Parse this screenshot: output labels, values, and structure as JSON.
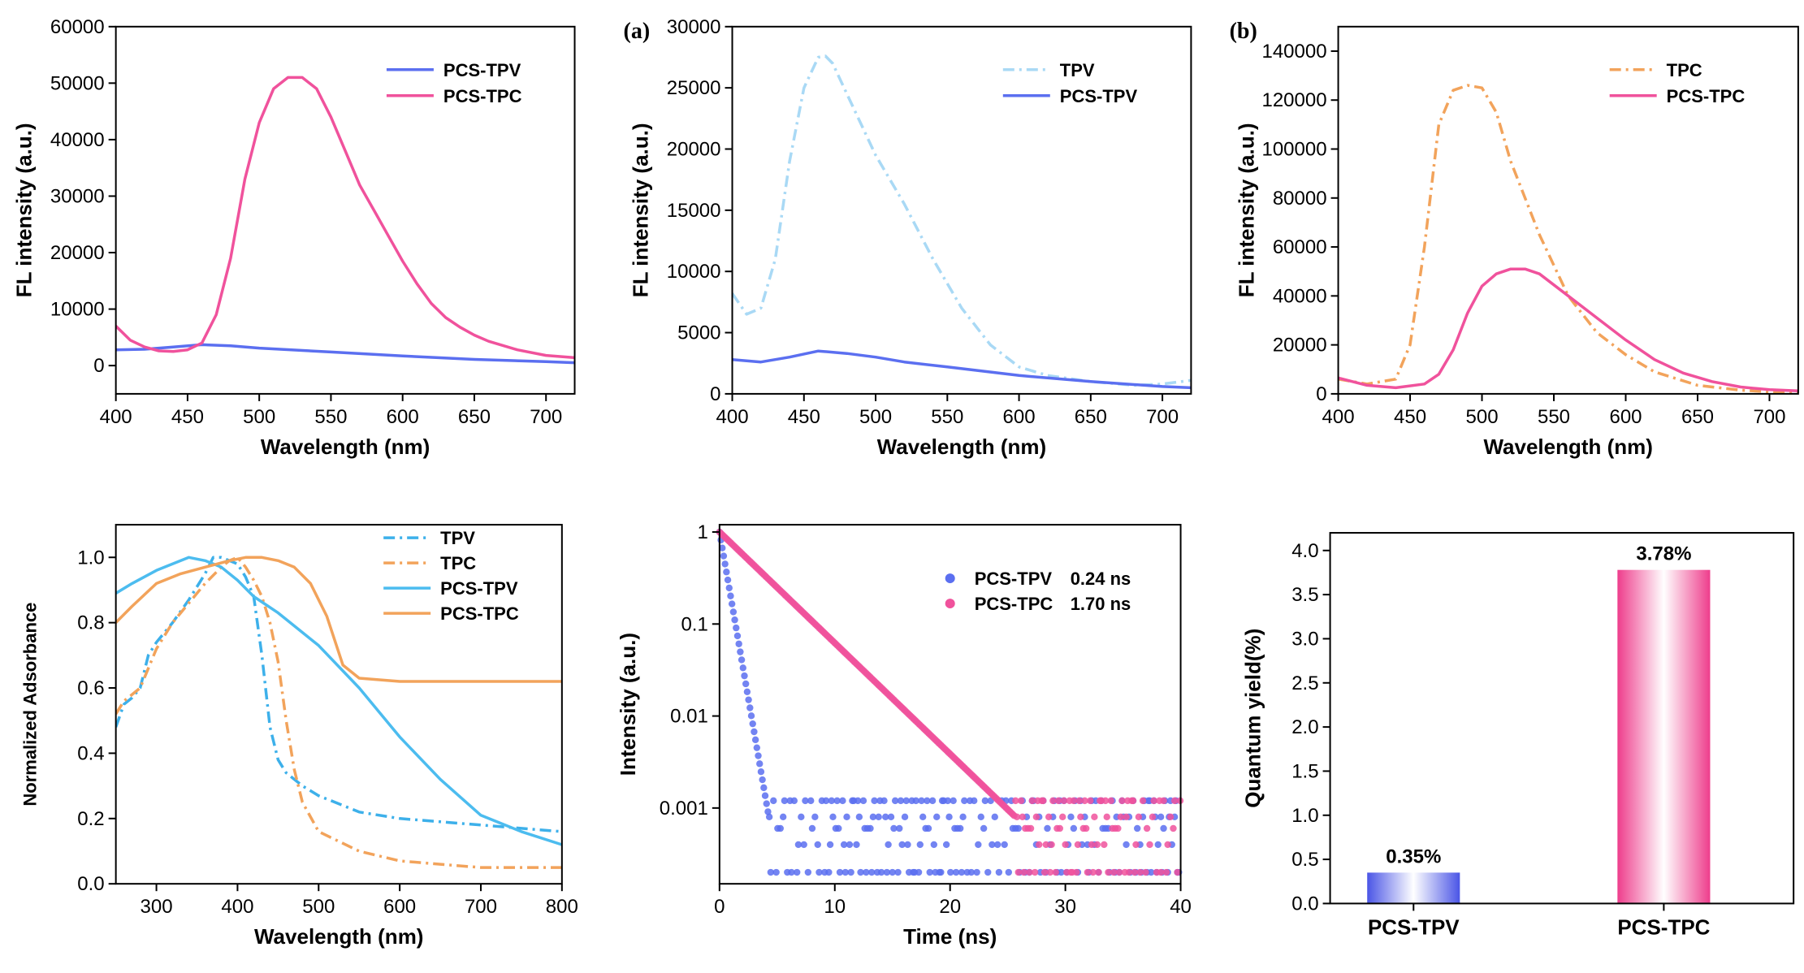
{
  "chart_data": [
    {
      "id": "p1",
      "type": "line",
      "tag": "",
      "xlabel": "Wavelength (nm)",
      "ylabel": "FL intensity (a.u.)",
      "xlim": [
        400,
        720
      ],
      "ylim": [
        -5000,
        60000
      ],
      "xticks": [
        "400",
        "450",
        "500",
        "550",
        "600",
        "650",
        "700"
      ],
      "yticks": [
        "0",
        "10000",
        "20000",
        "30000",
        "40000",
        "50000",
        "60000"
      ],
      "legend_position": "top-right",
      "series": [
        {
          "name": "PCS-TPV",
          "color": "#5b6ff0",
          "dash": "solid",
          "x": [
            400,
            420,
            440,
            460,
            480,
            500,
            550,
            600,
            650,
            700,
            720
          ],
          "y": [
            2800,
            2900,
            3300,
            3700,
            3500,
            3100,
            2400,
            1700,
            1100,
            700,
            500
          ]
        },
        {
          "name": "PCS-TPC",
          "color": "#f0529c",
          "dash": "solid",
          "x": [
            400,
            410,
            420,
            430,
            440,
            450,
            460,
            470,
            480,
            490,
            500,
            510,
            520,
            530,
            540,
            550,
            560,
            570,
            580,
            590,
            600,
            610,
            620,
            630,
            640,
            650,
            660,
            680,
            700,
            720
          ],
          "y": [
            7000,
            4500,
            3300,
            2600,
            2500,
            2800,
            4000,
            9000,
            19000,
            33000,
            43000,
            49000,
            51000,
            51000,
            49000,
            44000,
            38000,
            32000,
            27500,
            23000,
            18500,
            14500,
            11000,
            8500,
            6800,
            5400,
            4300,
            2800,
            1800,
            1400
          ]
        }
      ]
    },
    {
      "id": "p2",
      "type": "line",
      "tag": "(a)",
      "xlabel": "Wavelength (nm)",
      "ylabel": "FL intensity (a.u.)",
      "xlim": [
        400,
        720
      ],
      "ylim": [
        0,
        30000
      ],
      "xticks": [
        "400",
        "450",
        "500",
        "550",
        "600",
        "650",
        "700"
      ],
      "yticks": [
        "0",
        "5000",
        "10000",
        "15000",
        "20000",
        "25000",
        "30000"
      ],
      "legend_position": "top-right",
      "series": [
        {
          "name": "TPV",
          "color": "#a9d9f5",
          "dash": "dashdot",
          "x": [
            400,
            410,
            420,
            430,
            440,
            450,
            460,
            465,
            470,
            480,
            490,
            500,
            520,
            540,
            560,
            580,
            600,
            620,
            650,
            680,
            700,
            720
          ],
          "y": [
            8200,
            6500,
            7000,
            11000,
            19000,
            25000,
            27500,
            27600,
            27000,
            24500,
            22000,
            19500,
            15500,
            11000,
            7000,
            4000,
            2200,
            1500,
            1000,
            700,
            800,
            1100
          ]
        },
        {
          "name": "PCS-TPV",
          "color": "#5b6ff0",
          "dash": "solid",
          "x": [
            400,
            420,
            440,
            460,
            480,
            500,
            520,
            550,
            600,
            650,
            700,
            720
          ],
          "y": [
            2800,
            2600,
            3000,
            3500,
            3300,
            3000,
            2600,
            2200,
            1500,
            1000,
            600,
            500
          ]
        }
      ]
    },
    {
      "id": "p3",
      "type": "line",
      "tag": "(b)",
      "xlabel": "Wavelength (nm)",
      "ylabel": "FL intensity (a.u.)",
      "xlim": [
        400,
        720
      ],
      "ylim": [
        0,
        150000
      ],
      "xticks": [
        "400",
        "450",
        "500",
        "550",
        "600",
        "650",
        "700"
      ],
      "yticks": [
        "0",
        "20000",
        "40000",
        "60000",
        "80000",
        "100000",
        "120000",
        "140000"
      ],
      "legend_position": "top-right",
      "series": [
        {
          "name": "TPC",
          "color": "#f2a35b",
          "dash": "dashdot",
          "x": [
            400,
            420,
            440,
            450,
            460,
            470,
            480,
            490,
            500,
            510,
            520,
            540,
            560,
            580,
            600,
            620,
            650,
            680,
            700,
            720
          ],
          "y": [
            6000,
            4000,
            6000,
            20000,
            60000,
            110000,
            124000,
            126000,
            125000,
            115000,
            95000,
            65000,
            40000,
            25000,
            16000,
            9000,
            3500,
            1500,
            800,
            500
          ]
        },
        {
          "name": "PCS-TPC",
          "color": "#f0529c",
          "dash": "solid",
          "x": [
            400,
            420,
            440,
            460,
            470,
            480,
            490,
            500,
            510,
            520,
            530,
            540,
            560,
            580,
            600,
            620,
            640,
            660,
            680,
            700,
            720
          ],
          "y": [
            6500,
            3500,
            2500,
            4000,
            8000,
            18000,
            33000,
            44000,
            49000,
            51000,
            51000,
            49000,
            40000,
            31000,
            22000,
            14000,
            8500,
            5000,
            2800,
            1700,
            1200
          ]
        }
      ]
    },
    {
      "id": "p4",
      "type": "line",
      "tag": "",
      "xlabel": "Wavelength (nm)",
      "ylabel": "Normalized Adsorbance",
      "xlim": [
        250,
        800
      ],
      "ylim": [
        0.0,
        1.1
      ],
      "xticks": [
        "300",
        "400",
        "500",
        "600",
        "700",
        "800"
      ],
      "yticks": [
        "0.0",
        "0.2",
        "0.4",
        "0.6",
        "0.8",
        "1.0"
      ],
      "legend_position": "top-right",
      "series": [
        {
          "name": "TPV",
          "color": "#3db0ea",
          "dash": "dashdot",
          "x": [
            250,
            260,
            270,
            280,
            290,
            300,
            320,
            340,
            360,
            370,
            380,
            390,
            400,
            410,
            420,
            430,
            440,
            450,
            460,
            480,
            500,
            550,
            600,
            650,
            700,
            750,
            800
          ],
          "y": [
            0.48,
            0.55,
            0.57,
            0.6,
            0.7,
            0.74,
            0.8,
            0.87,
            0.95,
            1.0,
            1.0,
            0.99,
            0.98,
            0.94,
            0.88,
            0.7,
            0.48,
            0.38,
            0.34,
            0.3,
            0.27,
            0.22,
            0.2,
            0.19,
            0.18,
            0.17,
            0.16
          ]
        },
        {
          "name": "TPC",
          "color": "#f2a35b",
          "dash": "dashdot",
          "x": [
            250,
            260,
            270,
            280,
            290,
            300,
            320,
            340,
            360,
            380,
            390,
            400,
            410,
            420,
            430,
            440,
            450,
            460,
            470,
            480,
            500,
            550,
            600,
            650,
            700,
            750,
            800
          ],
          "y": [
            0.52,
            0.56,
            0.58,
            0.6,
            0.66,
            0.72,
            0.8,
            0.86,
            0.92,
            0.97,
            0.99,
            1.0,
            0.97,
            0.93,
            0.88,
            0.8,
            0.68,
            0.5,
            0.35,
            0.25,
            0.16,
            0.1,
            0.07,
            0.06,
            0.05,
            0.05,
            0.05
          ]
        },
        {
          "name": "PCS-TPV",
          "color": "#4cbcef",
          "dash": "solid",
          "x": [
            250,
            270,
            300,
            320,
            340,
            360,
            380,
            400,
            420,
            450,
            500,
            550,
            600,
            650,
            700,
            750,
            800
          ],
          "y": [
            0.89,
            0.92,
            0.96,
            0.98,
            1.0,
            0.99,
            0.97,
            0.93,
            0.88,
            0.83,
            0.73,
            0.6,
            0.45,
            0.32,
            0.21,
            0.16,
            0.12
          ]
        },
        {
          "name": "PCS-TPC",
          "color": "#f2a35b",
          "dash": "solid",
          "x": [
            250,
            270,
            300,
            330,
            360,
            390,
            410,
            430,
            450,
            470,
            490,
            510,
            530,
            550,
            600,
            650,
            700,
            750,
            800
          ],
          "y": [
            0.8,
            0.85,
            0.92,
            0.95,
            0.97,
            0.99,
            1.0,
            1.0,
            0.99,
            0.97,
            0.92,
            0.82,
            0.67,
            0.63,
            0.62,
            0.62,
            0.62,
            0.62,
            0.62
          ]
        }
      ]
    },
    {
      "id": "p5",
      "type": "scatter",
      "tag": "",
      "xlabel": "Time (ns)",
      "ylabel": "Intensity (a.u.)",
      "xlim": [
        0,
        40
      ],
      "ylim": [
        0.00015,
        1.2
      ],
      "yscale": "log",
      "xticks": [
        "0",
        "10",
        "20",
        "30",
        "40"
      ],
      "yticks": [
        "0.001",
        "0.01",
        "0.1",
        "1"
      ],
      "legend_position": "top-right",
      "series": [
        {
          "name": "PCS-TPV",
          "lifetime": "0.24 ns",
          "color": "#5b6ff0",
          "decay_constant": 0.6,
          "floor": 0.0002
        },
        {
          "name": "PCS-TPC",
          "lifetime": "1.70 ns",
          "color": "#f0529c",
          "decay_constant": 3.6,
          "floor": 0.0002
        }
      ]
    },
    {
      "id": "p6",
      "type": "bar",
      "tag": "",
      "xlabel": "",
      "ylabel": "Quantum yield(%)",
      "ylim": [
        0,
        4.2
      ],
      "yticks": [
        "0.0",
        "0.5",
        "1.0",
        "1.5",
        "2.0",
        "2.5",
        "3.0",
        "3.5",
        "4.0"
      ],
      "categories": [
        "PCS-TPV",
        "PCS-TPC"
      ],
      "values": [
        0.35,
        3.78
      ],
      "value_labels": [
        "0.35%",
        "3.78%"
      ],
      "colors": [
        "#4a55e6",
        "#ee3d8c"
      ]
    }
  ]
}
